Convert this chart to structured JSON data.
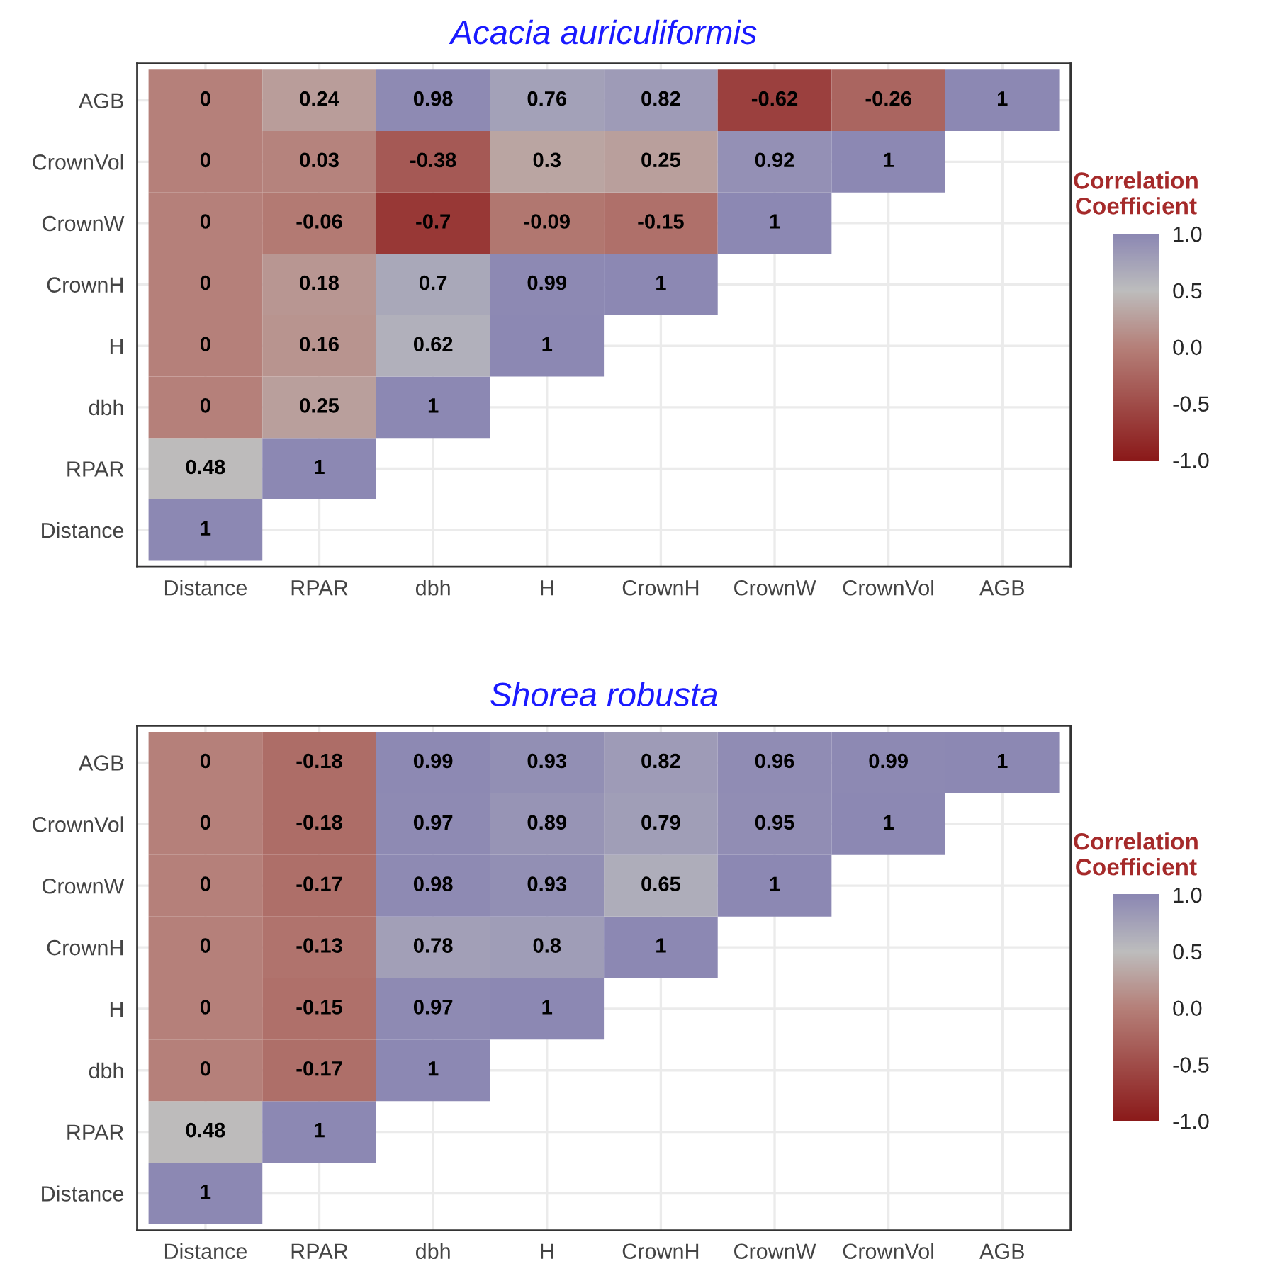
{
  "chart_data": [
    {
      "type": "heatmap",
      "title": "Acacia auriculiformis",
      "clabel": "Correlation\nCoefficient",
      "grid": true,
      "data_labels": true,
      "clim": [
        -1,
        1
      ],
      "cticks": [
        {
          "value": 1,
          "label": "1.0"
        },
        {
          "value": 0.5,
          "label": "0.5"
        },
        {
          "value": 0,
          "label": "0.0"
        },
        {
          "value": -0.5,
          "label": "-0.5"
        },
        {
          "value": -1,
          "label": "-1.0"
        }
      ],
      "categories": [
        "Distance",
        "RPAR",
        "dbh",
        "H",
        "CrownH",
        "CrownW",
        "CrownVol",
        "AGB"
      ],
      "y_categories": [
        "AGB",
        "CrownVol",
        "CrownW",
        "CrownH",
        "H",
        "dbh",
        "RPAR",
        "Distance"
      ],
      "cells": [
        [
          0,
          0.24,
          0.98,
          0.76,
          0.82,
          -0.62,
          -0.26,
          1
        ],
        [
          0,
          0.03,
          -0.38,
          0.3,
          0.25,
          0.92,
          1,
          null
        ],
        [
          0,
          -0.06,
          -0.7,
          -0.09,
          -0.15,
          1,
          null,
          null
        ],
        [
          0,
          0.18,
          0.7,
          0.99,
          1,
          null,
          null,
          null
        ],
        [
          0,
          0.16,
          0.62,
          1,
          null,
          null,
          null,
          null
        ],
        [
          0,
          0.25,
          1,
          null,
          null,
          null,
          null,
          null
        ],
        [
          0.48,
          1,
          null,
          null,
          null,
          null,
          null,
          null
        ],
        [
          1,
          null,
          null,
          null,
          null,
          null,
          null,
          null
        ]
      ]
    },
    {
      "type": "heatmap",
      "title": "Shorea robusta",
      "clabel": "Correlation\nCoefficient",
      "grid": true,
      "data_labels": true,
      "clim": [
        -1,
        1
      ],
      "cticks": [
        {
          "value": 1,
          "label": "1.0"
        },
        {
          "value": 0.5,
          "label": "0.5"
        },
        {
          "value": 0,
          "label": "0.0"
        },
        {
          "value": -0.5,
          "label": "-0.5"
        },
        {
          "value": -1,
          "label": "-1.0"
        }
      ],
      "categories": [
        "Distance",
        "RPAR",
        "dbh",
        "H",
        "CrownH",
        "CrownW",
        "CrownVol",
        "AGB"
      ],
      "y_categories": [
        "AGB",
        "CrownVol",
        "CrownW",
        "CrownH",
        "H",
        "dbh",
        "RPAR",
        "Distance"
      ],
      "cells": [
        [
          0,
          -0.18,
          0.99,
          0.93,
          0.82,
          0.96,
          0.99,
          1
        ],
        [
          0,
          -0.18,
          0.97,
          0.89,
          0.79,
          0.95,
          1,
          null
        ],
        [
          0,
          -0.17,
          0.98,
          0.93,
          0.65,
          1,
          null,
          null
        ],
        [
          0,
          -0.13,
          0.78,
          0.8,
          1,
          null,
          null,
          null
        ],
        [
          0,
          -0.15,
          0.97,
          1,
          null,
          null,
          null,
          null
        ],
        [
          0,
          -0.17,
          1,
          null,
          null,
          null,
          null,
          null
        ],
        [
          0.48,
          1,
          null,
          null,
          null,
          null,
          null,
          null
        ],
        [
          1,
          null,
          null,
          null,
          null,
          null,
          null,
          null
        ]
      ]
    }
  ]
}
